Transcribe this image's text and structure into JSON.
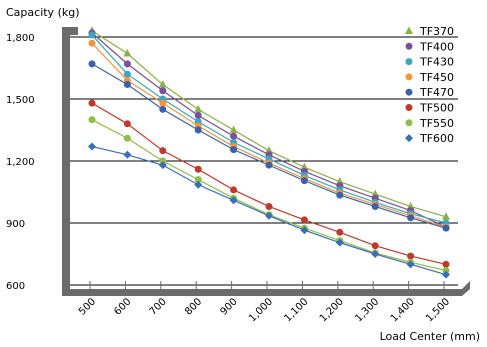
{
  "chart_data": {
    "type": "line",
    "ylabel": "Capacity (kg)",
    "xlabel": "Load Center (mm)",
    "x": [
      500,
      600,
      700,
      800,
      900,
      1000,
      1100,
      1200,
      1300,
      1400,
      1500
    ],
    "x_tick_labels": [
      "500",
      "600",
      "700",
      "800",
      "900",
      "1,000",
      "1,100",
      "1,200",
      "1,300",
      "1,400",
      "1,500"
    ],
    "y_ticks": [
      600,
      900,
      1200,
      1500,
      1800
    ],
    "y_tick_labels": [
      "600",
      "900",
      "1,200",
      "1,500",
      "1,800"
    ],
    "ylim": [
      600,
      1800
    ],
    "grid": "horizontal",
    "legend_position": "top-right",
    "series": [
      {
        "name": "TF370",
        "color": "#8db04a",
        "marker": "triangle",
        "values": [
          1830,
          1720,
          1570,
          1450,
          1350,
          1250,
          1170,
          1100,
          1040,
          980,
          930
        ]
      },
      {
        "name": "TF400",
        "color": "#7a4f9c",
        "marker": "circle",
        "values": [
          1820,
          1670,
          1540,
          1420,
          1320,
          1230,
          1150,
          1080,
          1020,
          960,
          880
        ]
      },
      {
        "name": "TF430",
        "color": "#3aa6c0",
        "marker": "circle",
        "values": [
          1810,
          1620,
          1500,
          1390,
          1290,
          1210,
          1130,
          1060,
          1000,
          945,
          900
        ]
      },
      {
        "name": "TF450",
        "color": "#f0963c",
        "marker": "circle",
        "values": [
          1770,
          1590,
          1480,
          1370,
          1270,
          1190,
          1115,
          1045,
          990,
          935,
          880
        ]
      },
      {
        "name": "TF470",
        "color": "#3b62a8",
        "marker": "circle",
        "values": [
          1670,
          1570,
          1450,
          1350,
          1255,
          1180,
          1105,
          1035,
          980,
          925,
          875
        ]
      },
      {
        "name": "TF500",
        "color": "#c0392b",
        "marker": "circle",
        "values": [
          1480,
          1380,
          1250,
          1160,
          1060,
          980,
          915,
          855,
          790,
          740,
          700
        ]
      },
      {
        "name": "TF550",
        "color": "#8fbf4a",
        "marker": "circle",
        "values": [
          1400,
          1310,
          1200,
          1110,
          1020,
          940,
          875,
          815,
          755,
          710,
          670
        ]
      },
      {
        "name": "TF600",
        "color": "#3c6eb4",
        "marker": "diamond",
        "values": [
          1270,
          1230,
          1180,
          1085,
          1010,
          935,
          865,
          805,
          750,
          700,
          650
        ]
      }
    ]
  }
}
